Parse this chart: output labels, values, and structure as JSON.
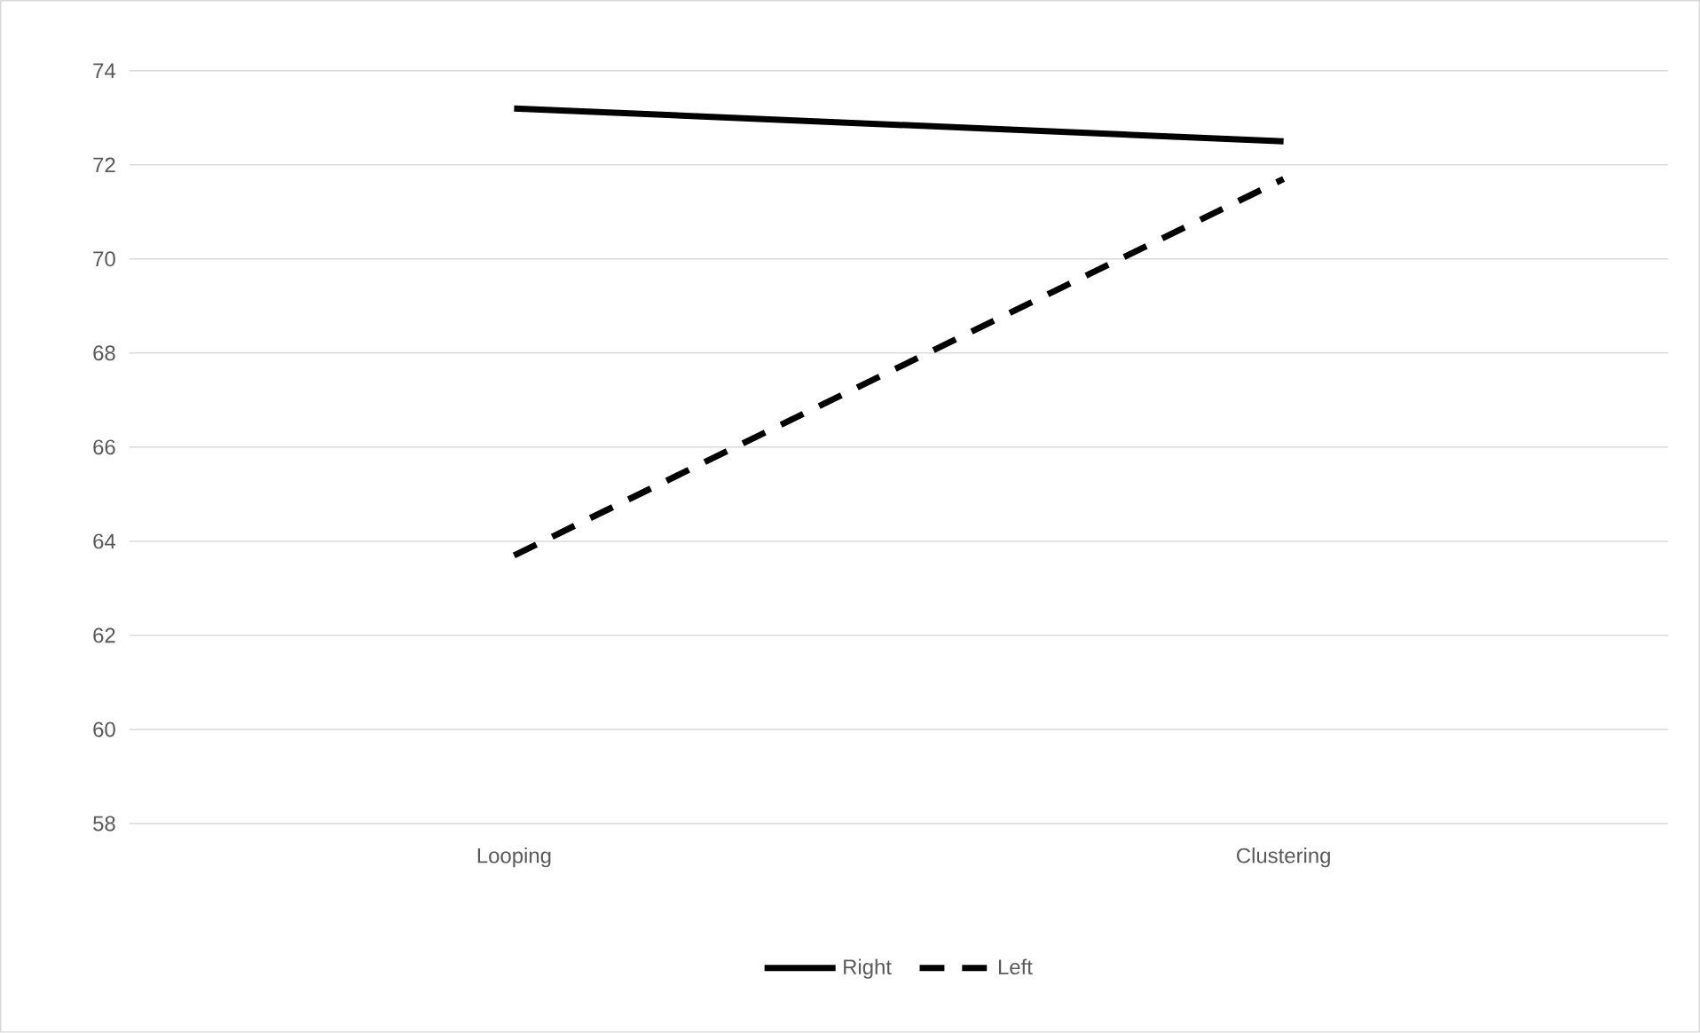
{
  "chart_data": {
    "type": "line",
    "categories": [
      "Looping",
      "Clustering"
    ],
    "series": [
      {
        "name": "Right",
        "color": "#000000",
        "values": [
          73.2,
          72.5
        ],
        "line_style": "solid"
      },
      {
        "name": "Left",
        "color": "#000000",
        "values": [
          63.7,
          71.7
        ],
        "line_style": "dashed"
      }
    ],
    "ylim": [
      58,
      74
    ],
    "yticks": [
      58,
      60,
      62,
      64,
      66,
      68,
      70,
      72,
      74
    ],
    "grid": "y",
    "legend": "bottom"
  }
}
